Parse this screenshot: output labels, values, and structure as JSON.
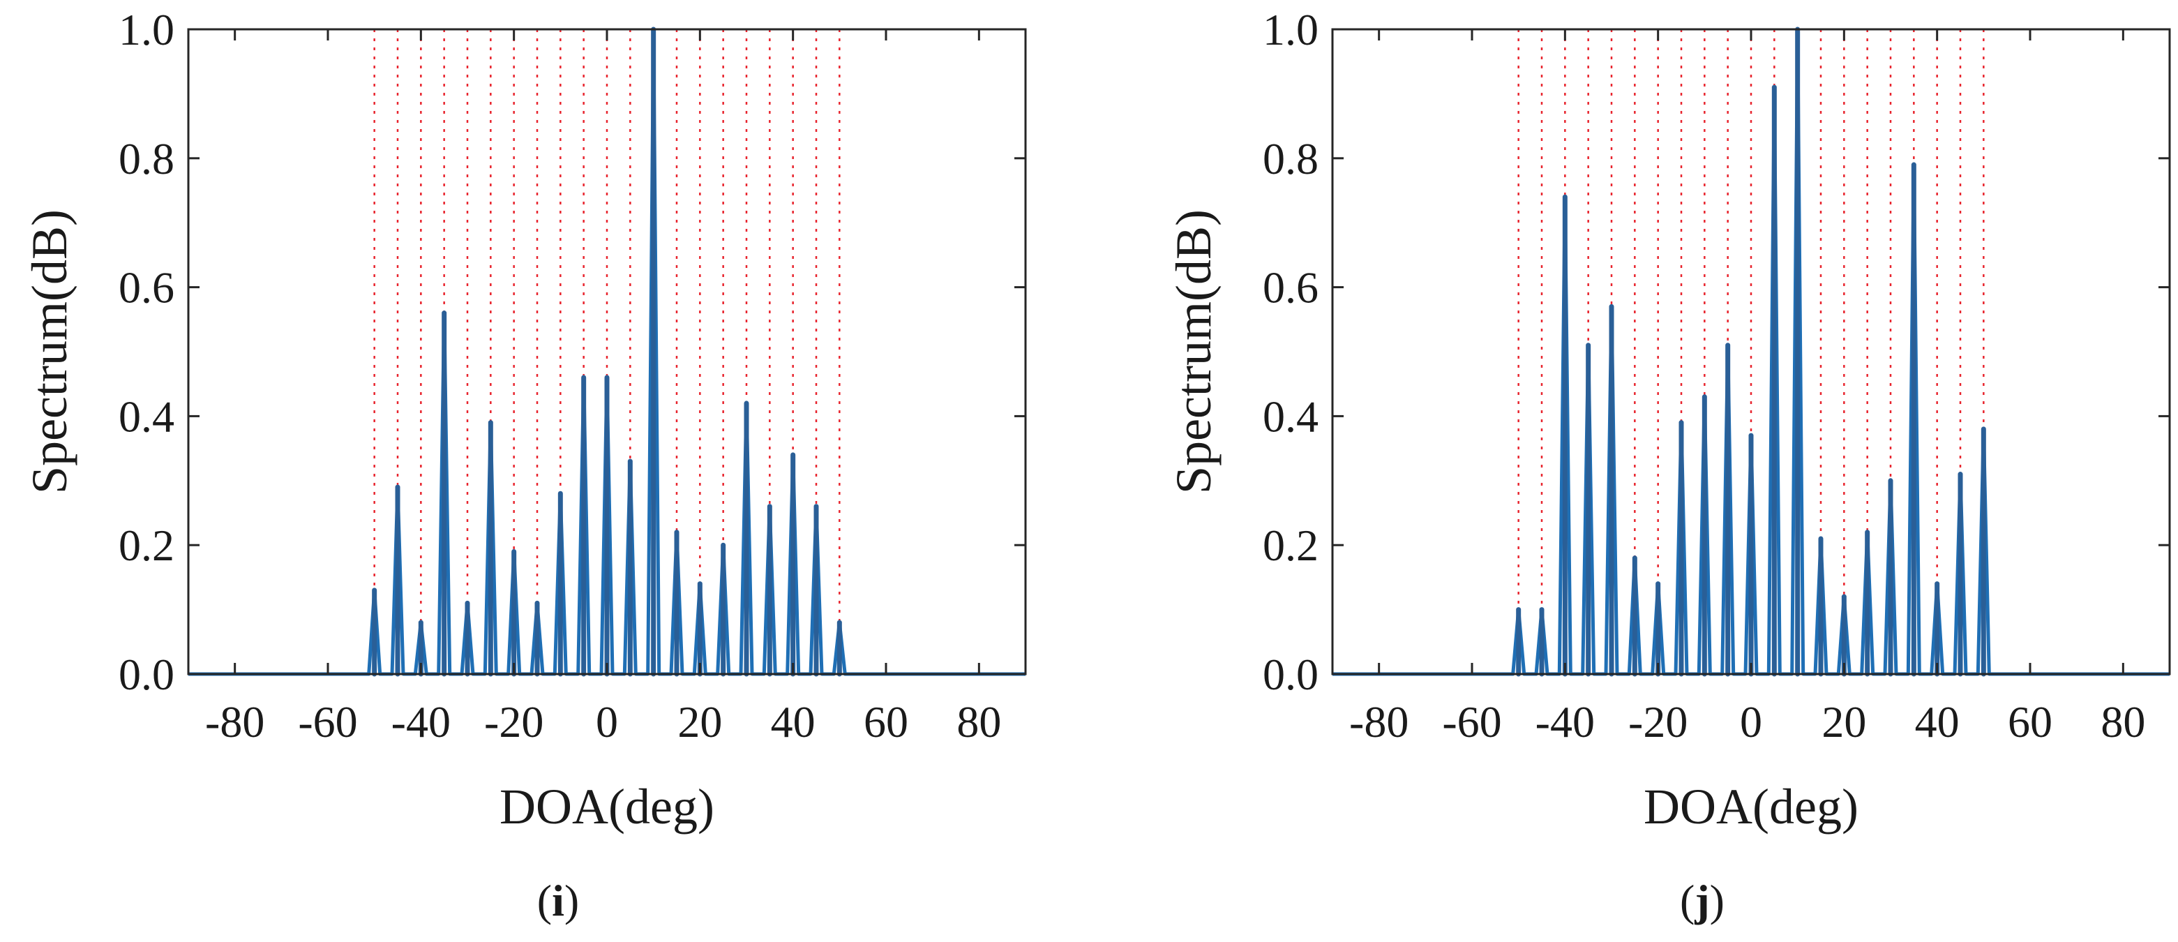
{
  "chart_data": [
    {
      "type": "line",
      "panel_label": "i",
      "panel_open": "(",
      "panel_close": ")",
      "xlabel": "DOA(deg)",
      "ylabel": "Spectrum(dB)",
      "xlim": [
        -90,
        90
      ],
      "ylim": [
        0,
        1
      ],
      "xticks": [
        -80,
        -60,
        -40,
        -20,
        0,
        20,
        40,
        60,
        80
      ],
      "yticks": [
        "0.0",
        "0.2",
        "0.4",
        "0.6",
        "0.8",
        "1.0"
      ],
      "grid": false,
      "line_color": "#1f6fb5",
      "marker_color": "#e8242e",
      "true_doas": [
        -50,
        -45,
        -40,
        -35,
        -30,
        -25,
        -20,
        -15,
        -10,
        -5,
        0,
        5,
        10,
        15,
        20,
        25,
        30,
        35,
        40,
        45,
        50
      ],
      "peaks": [
        {
          "x": -50,
          "y": 0.13
        },
        {
          "x": -45,
          "y": 0.29
        },
        {
          "x": -40,
          "y": 0.08
        },
        {
          "x": -35,
          "y": 0.56
        },
        {
          "x": -30,
          "y": 0.11
        },
        {
          "x": -25,
          "y": 0.39
        },
        {
          "x": -20,
          "y": 0.19
        },
        {
          "x": -15,
          "y": 0.11
        },
        {
          "x": -10,
          "y": 0.28
        },
        {
          "x": -5,
          "y": 0.46
        },
        {
          "x": 0,
          "y": 0.46
        },
        {
          "x": 5,
          "y": 0.33
        },
        {
          "x": 10,
          "y": 1.0
        },
        {
          "x": 15,
          "y": 0.22
        },
        {
          "x": 20,
          "y": 0.14
        },
        {
          "x": 25,
          "y": 0.2
        },
        {
          "x": 30,
          "y": 0.42
        },
        {
          "x": 35,
          "y": 0.26
        },
        {
          "x": 40,
          "y": 0.34
        },
        {
          "x": 45,
          "y": 0.26
        },
        {
          "x": 50,
          "y": 0.08
        }
      ]
    },
    {
      "type": "line",
      "panel_label": "j",
      "panel_open": "(",
      "panel_close": ")",
      "xlabel": "DOA(deg)",
      "ylabel": "Spectrum(dB)",
      "xlim": [
        -90,
        90
      ],
      "ylim": [
        0,
        1
      ],
      "xticks": [
        -80,
        -60,
        -40,
        -20,
        0,
        20,
        40,
        60,
        80
      ],
      "yticks": [
        "0.0",
        "0.2",
        "0.4",
        "0.6",
        "0.8",
        "1.0"
      ],
      "grid": false,
      "line_color": "#1f6fb5",
      "marker_color": "#e8242e",
      "true_doas": [
        -50,
        -45,
        -40,
        -35,
        -30,
        -25,
        -20,
        -15,
        -10,
        -5,
        0,
        5,
        10,
        15,
        20,
        25,
        30,
        35,
        40,
        45,
        50
      ],
      "peaks": [
        {
          "x": -50,
          "y": 0.1
        },
        {
          "x": -45,
          "y": 0.1
        },
        {
          "x": -40,
          "y": 0.74
        },
        {
          "x": -35,
          "y": 0.51
        },
        {
          "x": -30,
          "y": 0.57
        },
        {
          "x": -25,
          "y": 0.18
        },
        {
          "x": -20,
          "y": 0.14
        },
        {
          "x": -15,
          "y": 0.39
        },
        {
          "x": -10,
          "y": 0.43
        },
        {
          "x": -5,
          "y": 0.51
        },
        {
          "x": 0,
          "y": 0.37
        },
        {
          "x": 5,
          "y": 0.91
        },
        {
          "x": 10,
          "y": 1.0
        },
        {
          "x": 15,
          "y": 0.21
        },
        {
          "x": 20,
          "y": 0.12
        },
        {
          "x": 25,
          "y": 0.22
        },
        {
          "x": 30,
          "y": 0.3
        },
        {
          "x": 35,
          "y": 0.79
        },
        {
          "x": 40,
          "y": 0.14
        },
        {
          "x": 45,
          "y": 0.31
        },
        {
          "x": 50,
          "y": 0.38
        }
      ]
    }
  ]
}
